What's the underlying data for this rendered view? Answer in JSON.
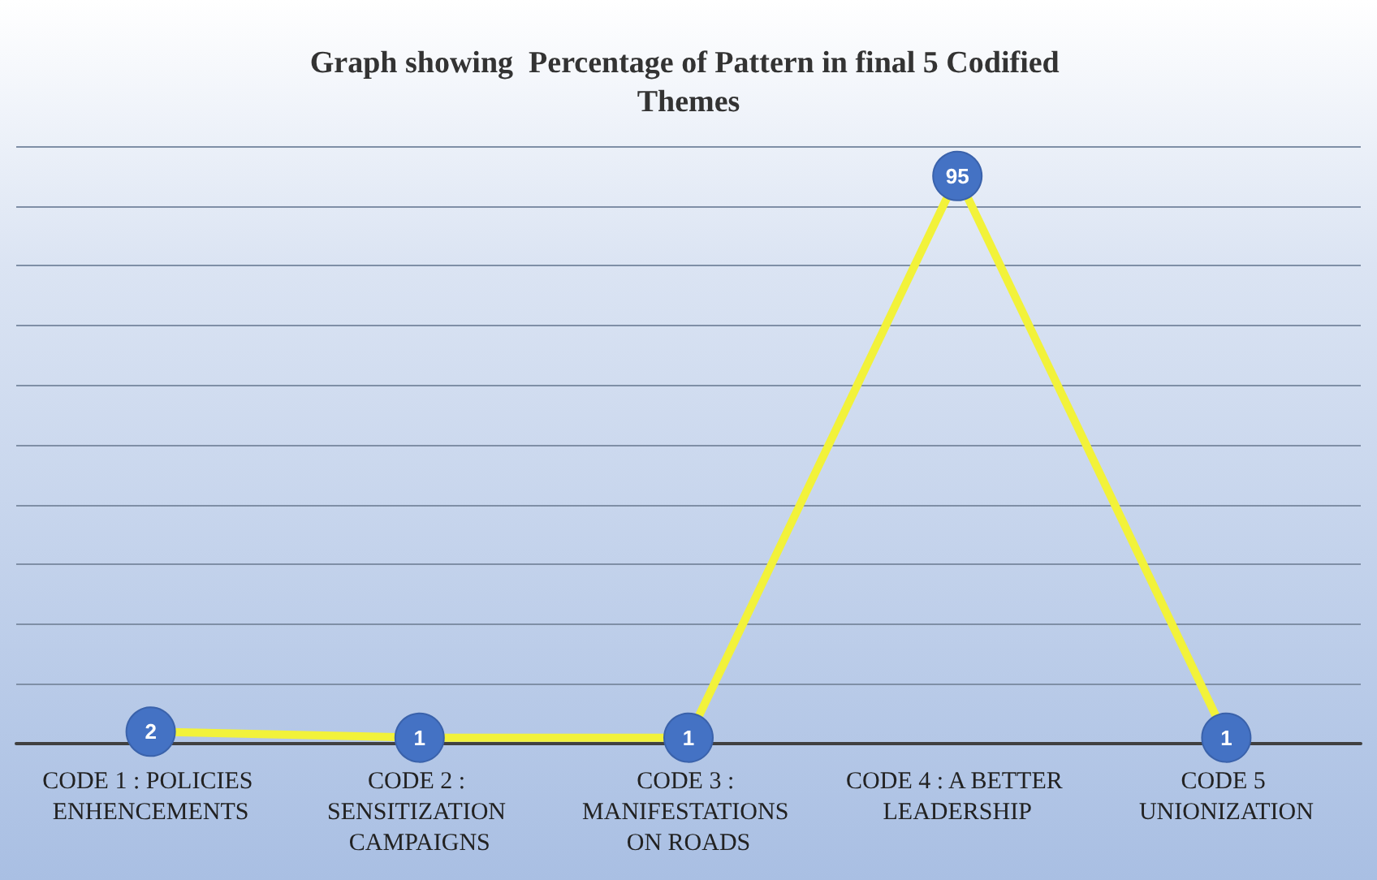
{
  "chart_data": {
    "type": "line",
    "title": "Graph showing  Percentage of Pattern in final 5 Codified Themes",
    "categories": [
      "CODE 1 : POLICIES ENHENCEMENTS",
      "CODE 2 : SENSITIZATION CAMPAIGNS",
      "CODE 3 : MANIFESTATIONS ON ROADS",
      "CODE 4 : A BETTER LEADERSHIP",
      "CODE 5 UNIONIZATION"
    ],
    "series": [
      {
        "color": "#f2f23a",
        "values": [
          2,
          1,
          1,
          95,
          1
        ]
      }
    ],
    "ylim": [
      0,
      100
    ],
    "yticks": [
      {
        "value": 0,
        "label": null
      },
      {
        "value": 10,
        "label": null
      },
      {
        "value": 20,
        "label": null
      },
      {
        "value": 30,
        "label": null
      },
      {
        "value": 40,
        "label": null
      },
      {
        "value": 50,
        "label": null
      },
      {
        "value": 60,
        "label": null
      },
      {
        "value": 70,
        "label": null
      },
      {
        "value": 80,
        "label": null
      },
      {
        "value": 90,
        "label": null
      },
      {
        "value": 100,
        "label": null
      }
    ],
    "tick_labels": "x",
    "grid": "y",
    "data_labels": true,
    "marker": "circle",
    "line_style": "solid"
  }
}
